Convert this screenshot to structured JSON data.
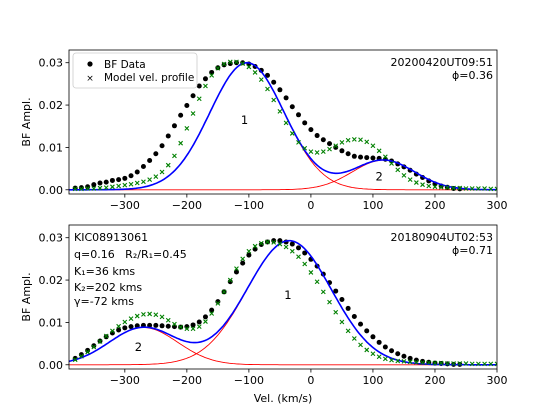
{
  "chart_data": [
    {
      "type": "line",
      "panel": "top",
      "ylabel": "BF Ampl.",
      "xlim": [
        -390,
        300
      ],
      "ylim": [
        -0.001,
        0.033
      ],
      "xticks": [
        -300,
        -200,
        -100,
        0,
        100,
        200,
        300
      ],
      "yticks": [
        0.0,
        0.01,
        0.02,
        0.03
      ],
      "ytick_labels": [
        "0.00",
        "0.01",
        "0.02",
        "0.03"
      ],
      "legend": {
        "placement": "top-left",
        "entries": [
          "BF Data",
          "Model vel. profile"
        ]
      },
      "date_label": "20200420UT09:51",
      "phase_label": "ϕ=0.36",
      "peak_labels": [
        {
          "text": "1",
          "x": -107,
          "y": 0.0155
        },
        {
          "text": "2",
          "x": 110,
          "y": 0.0022
        }
      ],
      "components": [
        {
          "amp": 0.03,
          "center": -103,
          "sigma": 60
        },
        {
          "amp": 0.007,
          "center": 117,
          "sigma": 50
        }
      ],
      "bf_data": {
        "x": [
          -380,
          -370,
          -360,
          -350,
          -340,
          -330,
          -320,
          -310,
          -300,
          -290,
          -280,
          -270,
          -260,
          -250,
          -240,
          -230,
          -220,
          -210,
          -200,
          -190,
          -180,
          -170,
          -160,
          -150,
          -140,
          -130,
          -120,
          -110,
          -100,
          -90,
          -80,
          -70,
          -60,
          -50,
          -40,
          -30,
          -20,
          -10,
          0,
          10,
          20,
          30,
          40,
          50,
          60,
          70,
          80,
          90,
          100,
          110,
          120,
          130,
          140,
          150,
          160,
          170,
          180,
          190,
          200,
          210,
          220,
          230,
          240
        ],
        "y": [
          0.0004,
          0.0005,
          0.0007,
          0.0012,
          0.0016,
          0.0018,
          0.0022,
          0.0024,
          0.0027,
          0.0033,
          0.0042,
          0.0055,
          0.0069,
          0.0085,
          0.0104,
          0.0127,
          0.0151,
          0.0176,
          0.0199,
          0.0222,
          0.0245,
          0.0262,
          0.0277,
          0.0288,
          0.0295,
          0.0298,
          0.03,
          0.03,
          0.0297,
          0.0291,
          0.0282,
          0.027,
          0.0254,
          0.0236,
          0.0217,
          0.0196,
          0.0177,
          0.0158,
          0.0142,
          0.0128,
          0.0118,
          0.0109,
          0.01,
          0.0092,
          0.0085,
          0.0079,
          0.0077,
          0.0076,
          0.0075,
          0.0074,
          0.0072,
          0.0068,
          0.0061,
          0.0054,
          0.0046,
          0.0037,
          0.0029,
          0.0021,
          0.0014,
          0.0009,
          0.0006,
          0.0003,
          0.0002
        ]
      },
      "model": {
        "x": [
          -380,
          -370,
          -360,
          -350,
          -340,
          -330,
          -320,
          -310,
          -300,
          -290,
          -280,
          -270,
          -260,
          -250,
          -240,
          -230,
          -220,
          -210,
          -200,
          -190,
          -180,
          -170,
          -160,
          -150,
          -140,
          -130,
          -120,
          -110,
          -100,
          -90,
          -80,
          -70,
          -60,
          -50,
          -40,
          -30,
          -20,
          -10,
          0,
          10,
          20,
          30,
          40,
          50,
          60,
          70,
          80,
          90,
          100,
          110,
          120,
          130,
          140,
          150,
          160,
          170,
          180,
          190,
          200,
          210,
          220,
          230,
          240,
          250,
          260,
          270,
          280,
          290,
          300
        ],
        "y": [
          0.0002,
          0.0002,
          0.0003,
          0.0003,
          0.0004,
          0.0005,
          0.0007,
          0.0009,
          0.0011,
          0.0013,
          0.0016,
          0.0019,
          0.0024,
          0.0031,
          0.0042,
          0.0058,
          0.008,
          0.011,
          0.0145,
          0.018,
          0.0215,
          0.0245,
          0.027,
          0.0287,
          0.0297,
          0.0302,
          0.0302,
          0.0298,
          0.029,
          0.0277,
          0.026,
          0.0238,
          0.0212,
          0.0185,
          0.0158,
          0.0133,
          0.0112,
          0.0098,
          0.009,
          0.0088,
          0.009,
          0.0096,
          0.0104,
          0.0112,
          0.0117,
          0.0119,
          0.0118,
          0.0113,
          0.0104,
          0.0092,
          0.0078,
          0.0062,
          0.0047,
          0.0034,
          0.0024,
          0.0017,
          0.0012,
          0.0009,
          0.0007,
          0.0006,
          0.0005,
          0.0004,
          0.0004,
          0.0003,
          0.0003,
          0.0003,
          0.0003,
          0.0002,
          0.0002
        ]
      },
      "colors": {
        "data": "#000000",
        "fit": "#0000ff",
        "component": "#ff0000",
        "model": "#008000"
      }
    },
    {
      "type": "line",
      "panel": "bottom",
      "xlabel": "Vel. (km/s)",
      "ylabel": "BF Ampl.",
      "xlim": [
        -390,
        300
      ],
      "ylim": [
        -0.001,
        0.033
      ],
      "xticks": [
        -300,
        -200,
        -100,
        0,
        100,
        200,
        300
      ],
      "yticks": [
        0.0,
        0.01,
        0.02,
        0.03
      ],
      "ytick_labels": [
        "0.00",
        "0.01",
        "0.02",
        "0.03"
      ],
      "date_label": "20180904UT02:53",
      "phase_label": "ϕ=0.71",
      "info_lines": [
        "KIC08913061",
        "q=0.16   R₂/R₁=0.45",
        "K₁=36 kms",
        "K₂=202 kms",
        "γ=-72 kms"
      ],
      "peak_labels": [
        {
          "text": "1",
          "x": -37,
          "y": 0.0155
        },
        {
          "text": "2",
          "x": -278,
          "y": 0.0032
        }
      ],
      "components": [
        {
          "amp": 0.0293,
          "center": -35,
          "sigma": 68
        },
        {
          "amp": 0.0088,
          "center": -270,
          "sigma": 55
        }
      ],
      "bf_data": {
        "x": [
          -380,
          -370,
          -360,
          -350,
          -340,
          -330,
          -320,
          -310,
          -300,
          -290,
          -280,
          -270,
          -260,
          -250,
          -240,
          -230,
          -220,
          -210,
          -200,
          -190,
          -180,
          -170,
          -160,
          -150,
          -140,
          -130,
          -120,
          -110,
          -100,
          -90,
          -80,
          -70,
          -60,
          -50,
          -40,
          -30,
          -20,
          -10,
          0,
          10,
          20,
          30,
          40,
          50,
          60,
          70,
          80,
          90,
          100,
          110,
          120,
          130,
          140,
          150,
          160,
          170,
          180,
          190,
          200,
          210,
          220,
          230,
          240
        ],
        "y": [
          0.0015,
          0.0024,
          0.0034,
          0.0045,
          0.0056,
          0.0066,
          0.0075,
          0.0082,
          0.0087,
          0.009,
          0.0092,
          0.0093,
          0.0093,
          0.0093,
          0.0092,
          0.0091,
          0.009,
          0.0089,
          0.009,
          0.0094,
          0.0101,
          0.0113,
          0.0129,
          0.0149,
          0.0172,
          0.0196,
          0.0219,
          0.024,
          0.0259,
          0.0273,
          0.0284,
          0.029,
          0.0293,
          0.0293,
          0.029,
          0.0285,
          0.0276,
          0.0264,
          0.0249,
          0.0233,
          0.0214,
          0.0194,
          0.0174,
          0.0154,
          0.0133,
          0.0114,
          0.0096,
          0.008,
          0.0066,
          0.0053,
          0.0042,
          0.0033,
          0.0026,
          0.002,
          0.0015,
          0.0011,
          0.0008,
          0.0006,
          0.0004,
          0.0003,
          0.0002,
          0.0001,
          0.0001
        ]
      },
      "model": {
        "x": [
          -380,
          -370,
          -360,
          -350,
          -340,
          -330,
          -320,
          -310,
          -300,
          -290,
          -280,
          -270,
          -260,
          -250,
          -240,
          -230,
          -220,
          -210,
          -200,
          -190,
          -180,
          -170,
          -160,
          -150,
          -140,
          -130,
          -120,
          -110,
          -100,
          -90,
          -80,
          -70,
          -60,
          -50,
          -40,
          -30,
          -20,
          -10,
          0,
          10,
          20,
          30,
          40,
          50,
          60,
          70,
          80,
          90,
          100,
          110,
          120,
          130,
          140,
          150,
          160,
          170,
          180,
          190,
          200,
          210,
          220,
          230,
          240,
          250,
          260,
          270,
          280,
          290,
          300
        ],
        "y": [
          0.0012,
          0.002,
          0.003,
          0.0042,
          0.0055,
          0.0068,
          0.008,
          0.0091,
          0.0101,
          0.0109,
          0.0115,
          0.0119,
          0.012,
          0.0118,
          0.0113,
          0.0105,
          0.0096,
          0.0089,
          0.0085,
          0.0085,
          0.009,
          0.0102,
          0.0121,
          0.0145,
          0.0172,
          0.02,
          0.0227,
          0.025,
          0.0268,
          0.028,
          0.0287,
          0.029,
          0.0289,
          0.0285,
          0.0278,
          0.0268,
          0.0255,
          0.0238,
          0.0218,
          0.0196,
          0.0172,
          0.0148,
          0.0124,
          0.0101,
          0.008,
          0.0062,
          0.0047,
          0.0035,
          0.0026,
          0.0019,
          0.0014,
          0.0011,
          0.0009,
          0.0008,
          0.0007,
          0.0006,
          0.0005,
          0.0005,
          0.0004,
          0.0004,
          0.0003,
          0.0003,
          0.0003,
          0.0003,
          0.0002,
          0.0002,
          0.0002,
          0.0002,
          0.0002
        ]
      },
      "colors": {
        "data": "#000000",
        "fit": "#0000ff",
        "component": "#ff0000",
        "model": "#008000"
      }
    }
  ]
}
